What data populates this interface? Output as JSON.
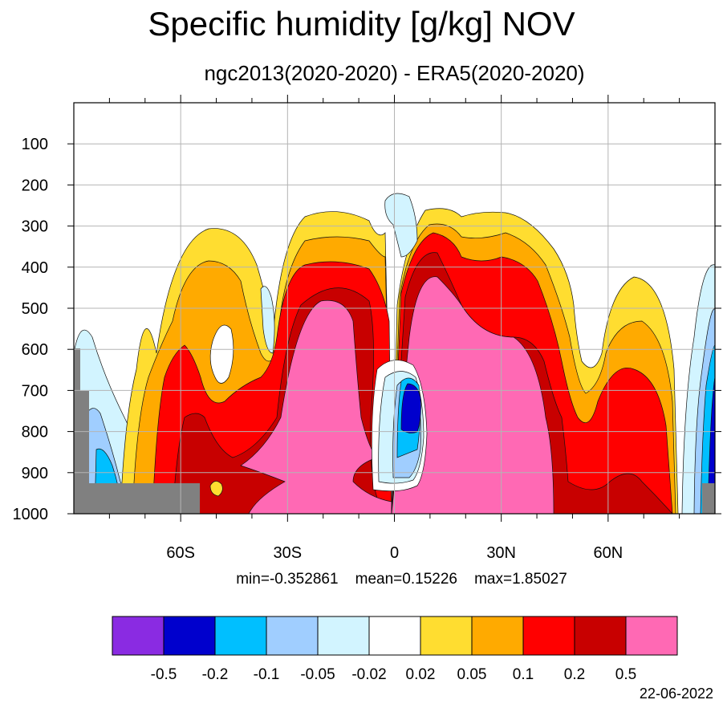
{
  "chart_data": {
    "type": "heatmap",
    "title": "Specific humidity [g/kg] NOV",
    "subtitle": "ngc2013(2020-2020) - ERA5(2020-2020)",
    "x": {
      "range": [
        -90,
        90
      ],
      "ticks": [
        -60,
        -30,
        0,
        30,
        60
      ],
      "tick_labels": [
        "60S",
        "30S",
        "0",
        "30N",
        "60N"
      ]
    },
    "y": {
      "range": [
        1000,
        0
      ],
      "ticks": [
        100,
        200,
        300,
        400,
        500,
        600,
        700,
        800,
        900,
        1000
      ],
      "tick_labels": [
        "100",
        "200",
        "300",
        "400",
        "500",
        "600",
        "700",
        "800",
        "900",
        "1000"
      ]
    },
    "grid": true,
    "stats": {
      "min_label": "min=-0.352861",
      "mean_label": "mean=0.15226",
      "max_label": "max=1.85027"
    },
    "colorbar": {
      "colors": [
        "#8a2be2",
        "#0000cd",
        "#00bfff",
        "#a0ceff",
        "#d2f4ff",
        "#ffffff",
        "#ffdd30",
        "#ffaa00",
        "#ff0000",
        "#c80000",
        "#ff69b4"
      ],
      "levels": [
        "-0.5",
        "-0.2",
        "-0.1",
        "-0.05",
        "-0.02",
        "0.02",
        "0.05",
        "0.1",
        "0.2",
        "0.5"
      ]
    },
    "date": "22-06-2022"
  }
}
